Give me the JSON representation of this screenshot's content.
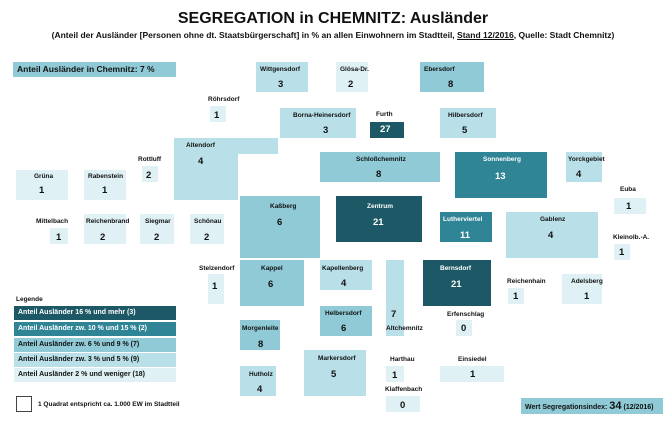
{
  "title": "SEGREGATION in CHEMNITZ: Ausländer",
  "subtitle": {
    "part1": "(Anteil der Ausländer [Personen ohne dt. Staatsbürgerschaft] in % an allen Einwohnern im Stadtteil,",
    "stand": "Stand 12/2016",
    "part2": ", Quelle: Stadt Chemnitz)"
  },
  "city_share": "Anteil Ausländer in Chemnitz: 7 %",
  "legend": {
    "title": "Legende",
    "classes": [
      {
        "label": "Anteil Ausländer 16 % und mehr (3)",
        "color": "#1d5866"
      },
      {
        "label": "Anteil Ausländer zw. 10 % und 15 % (2)",
        "color": "#2f8496"
      },
      {
        "label": "Anteil Ausländer zw. 6 % und 9 % (7)",
        "color": "#8fcad6"
      },
      {
        "label": "Anteil Ausländer zw. 3 % und 5 % (9)",
        "color": "#b9e0e8"
      },
      {
        "label": "Anteil Ausländer 2 % und weniger (18)",
        "color": "#dff1f5"
      }
    ],
    "scale_note": "1 Quadrat entspricht ca. 1.000 EW im Stadtteil"
  },
  "index": {
    "label": "Wert Segregationsindex:",
    "value": "34",
    "date": "(12/2016)"
  },
  "districts": [
    {
      "name": "Wittgensdorf",
      "value": "3"
    },
    {
      "name": "Glösa-Dr.",
      "value": "2"
    },
    {
      "name": "Ebersdorf",
      "value": "8"
    },
    {
      "name": "Röhrsdorf",
      "value": "1"
    },
    {
      "name": "Borna-Heinersdorf",
      "value": "3"
    },
    {
      "name": "Furth",
      "value": "27"
    },
    {
      "name": "Hilbersdorf",
      "value": "5"
    },
    {
      "name": "Altendorf",
      "value": "4"
    },
    {
      "name": "Rottluff",
      "value": "2"
    },
    {
      "name": "Schloßchemnitz",
      "value": "8"
    },
    {
      "name": "Sonnenberg",
      "value": "13"
    },
    {
      "name": "Yorckgebiet",
      "value": "4"
    },
    {
      "name": "Grüna",
      "value": "1"
    },
    {
      "name": "Rabenstein",
      "value": "1"
    },
    {
      "name": "Euba",
      "value": "1"
    },
    {
      "name": "Kaßberg",
      "value": "6"
    },
    {
      "name": "Zentrum",
      "value": "21"
    },
    {
      "name": "Lutherviertel",
      "value": "11"
    },
    {
      "name": "Gablenz",
      "value": "4"
    },
    {
      "name": "Mittelbach",
      "value": "1"
    },
    {
      "name": "Reichenbrand",
      "value": "2"
    },
    {
      "name": "Siegmar",
      "value": "2"
    },
    {
      "name": "Schönau",
      "value": "2"
    },
    {
      "name": "Kleinolb.-A.",
      "value": "1"
    },
    {
      "name": "Stelzendorf",
      "value": "1"
    },
    {
      "name": "Kappel",
      "value": "6"
    },
    {
      "name": "Kapellenberg",
      "value": "4"
    },
    {
      "name": "Bernsdorf",
      "value": "21"
    },
    {
      "name": "Reichenhain",
      "value": "1"
    },
    {
      "name": "Adelsberg",
      "value": "1"
    },
    {
      "name": "Helbersdorf",
      "value": "6"
    },
    {
      "name": "Altchemnitz",
      "value": "7"
    },
    {
      "name": "Erfenschlag",
      "value": "0"
    },
    {
      "name": "Morgenleite",
      "value": "8"
    },
    {
      "name": "Markersdorf",
      "value": "5"
    },
    {
      "name": "Harthau",
      "value": "1"
    },
    {
      "name": "Einsiedel",
      "value": "1"
    },
    {
      "name": "Hutholz",
      "value": "4"
    },
    {
      "name": "Klaffenbach",
      "value": "0"
    }
  ]
}
